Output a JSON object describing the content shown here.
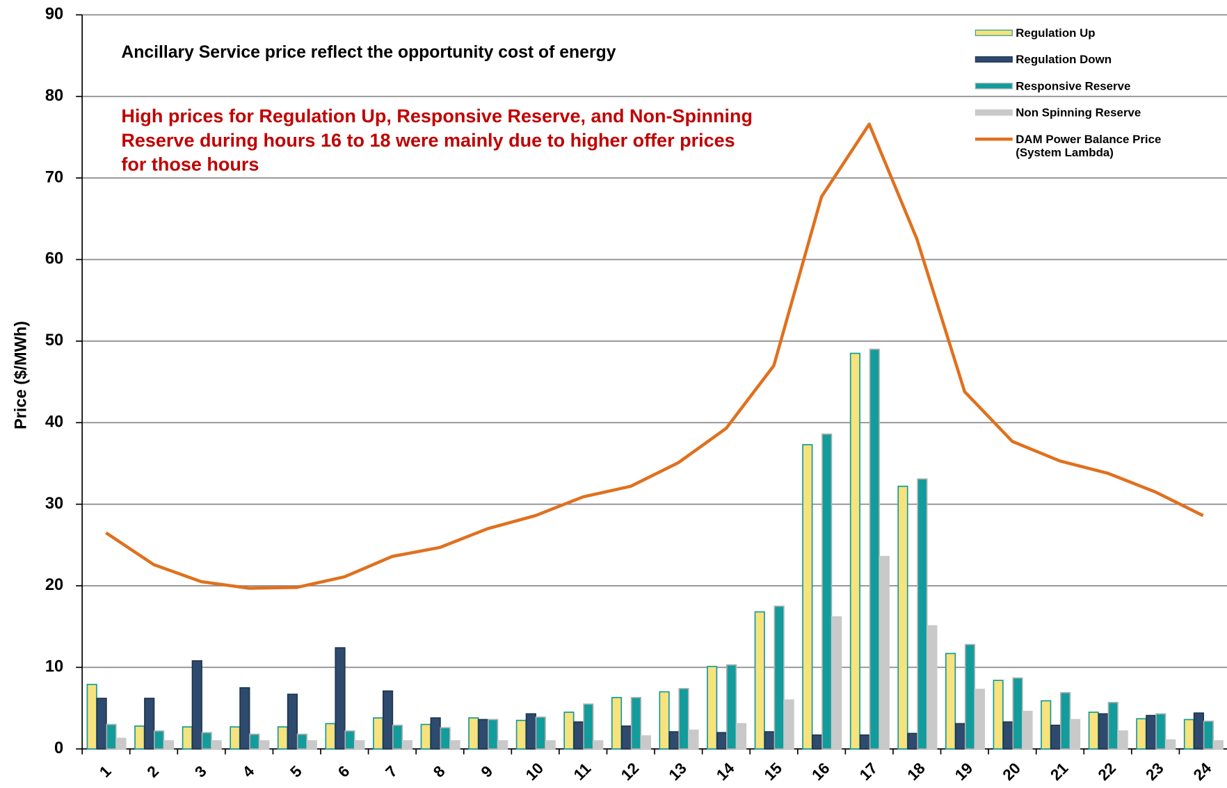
{
  "chart_data": {
    "type": "bar_line",
    "y_label": "Price ($/MWh)",
    "annotations": [
      "Ancillary Service price reflect the opportunity cost of energy"
    ],
    "red_annotation_lines": [
      "High prices for Regulation Up, Responsive Reserve, and Non-Spinning",
      "Reserve during hours 16 to 18 were mainly due to higher offer prices",
      "for those hours"
    ],
    "categories": [
      "1",
      "2",
      "3",
      "4",
      "5",
      "6",
      "7",
      "8",
      "9",
      "10",
      "11",
      "12",
      "13",
      "14",
      "15",
      "16",
      "17",
      "18",
      "19",
      "20",
      "21",
      "22",
      "23",
      "24"
    ],
    "ylim": [
      0,
      90
    ],
    "yticks": [
      0,
      10,
      20,
      30,
      40,
      50,
      60,
      70,
      80,
      90
    ],
    "grid": true,
    "legend": "top-right",
    "series": [
      {
        "name": "Regulation Up",
        "type": "bar",
        "color": "#f7e27c",
        "edge": "#139a9a",
        "values": [
          7.9,
          2.8,
          2.7,
          2.7,
          2.7,
          3.1,
          3.8,
          3.0,
          3.8,
          3.5,
          4.5,
          6.3,
          7.0,
          10.1,
          16.8,
          37.3,
          48.5,
          32.2,
          11.7,
          8.4,
          5.9,
          4.5,
          3.7,
          3.6
        ]
      },
      {
        "name": "Regulation Down",
        "type": "bar",
        "color": "#2e4a6e",
        "edge": "#1f3550",
        "values": [
          6.2,
          6.2,
          10.8,
          7.5,
          6.7,
          12.4,
          7.1,
          3.8,
          3.6,
          4.3,
          3.3,
          2.8,
          2.1,
          2.0,
          2.1,
          1.7,
          1.7,
          1.9,
          3.1,
          3.3,
          2.9,
          4.3,
          4.1,
          4.4
        ]
      },
      {
        "name": "Responsive Reserve",
        "type": "bar",
        "color": "#129c9c",
        "edge": "#b0b0b0",
        "values": [
          3.0,
          2.2,
          2.0,
          1.8,
          1.8,
          2.2,
          2.9,
          2.6,
          3.6,
          3.9,
          5.5,
          6.3,
          7.4,
          10.3,
          17.5,
          38.6,
          49.0,
          33.1,
          12.8,
          8.7,
          6.9,
          5.7,
          4.3,
          3.4
        ]
      },
      {
        "name": "Non Spinning Reserve",
        "type": "bar",
        "color": "#c9c9c9",
        "edge": "#c9c9c9",
        "values": [
          1.3,
          1.0,
          1.0,
          1.0,
          1.0,
          1.0,
          1.0,
          1.0,
          1.0,
          1.0,
          1.0,
          1.6,
          2.3,
          3.1,
          6.0,
          16.2,
          23.6,
          15.1,
          7.3,
          4.6,
          3.6,
          2.2,
          1.1,
          1.0
        ]
      },
      {
        "name": "DAM Power Balance Price (System Lambda)",
        "type": "line",
        "color": "#e0701e",
        "values": [
          26.5,
          22.6,
          20.5,
          19.7,
          19.8,
          21.1,
          23.6,
          24.7,
          27.0,
          28.6,
          30.9,
          32.2,
          35.1,
          39.3,
          47.0,
          67.7,
          76.6,
          62.5,
          43.8,
          37.7,
          35.3,
          33.8,
          31.5,
          28.6
        ]
      }
    ]
  }
}
